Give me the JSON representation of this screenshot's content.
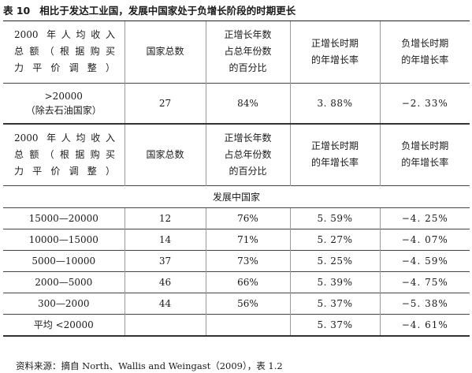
{
  "title": {
    "number": "表 10",
    "text": "相比于发达工业国，发展中国家处于负增长阶段的时期更长"
  },
  "columns": {
    "income": [
      "2000 年人均收入",
      "总额（根据购买",
      "力平价调整）"
    ],
    "count": [
      "国家总数"
    ],
    "share": [
      "正增长年数",
      "占总年份数",
      "的百分比"
    ],
    "pos_rate": [
      "正增长时期",
      "的年增长率"
    ],
    "neg_rate": [
      "负增长时期",
      "的年增长率"
    ]
  },
  "developed": {
    "income": [
      ">20000",
      "（除去石油国家）"
    ],
    "count": "27",
    "share": "84%",
    "pos_rate": "3. 88%",
    "neg_rate": "−2. 33%"
  },
  "section_label": "发展中国家",
  "developing": [
    {
      "income": "15000—20000",
      "count": "12",
      "share": "76%",
      "pos_rate": "5. 59%",
      "neg_rate": "−4. 25%"
    },
    {
      "income": "10000—15000",
      "count": "14",
      "share": "71%",
      "pos_rate": "5. 27%",
      "neg_rate": "−4. 07%"
    },
    {
      "income": "5000—10000",
      "count": "37",
      "share": "73%",
      "pos_rate": "5. 25%",
      "neg_rate": "−4. 59%"
    },
    {
      "income": "2000—5000",
      "count": "46",
      "share": "66%",
      "pos_rate": "5. 39%",
      "neg_rate": "−4. 75%"
    },
    {
      "income": "300—2000",
      "count": "44",
      "share": "56%",
      "pos_rate": "5. 37%",
      "neg_rate": "−5. 38%"
    },
    {
      "income": "平均 <20000",
      "count": "",
      "share": "",
      "pos_rate": "5. 37%",
      "neg_rate": "−4. 61%"
    }
  ],
  "source_note": "资料来源：摘自 North、Wallis and Weingast（2009），表 1.2"
}
